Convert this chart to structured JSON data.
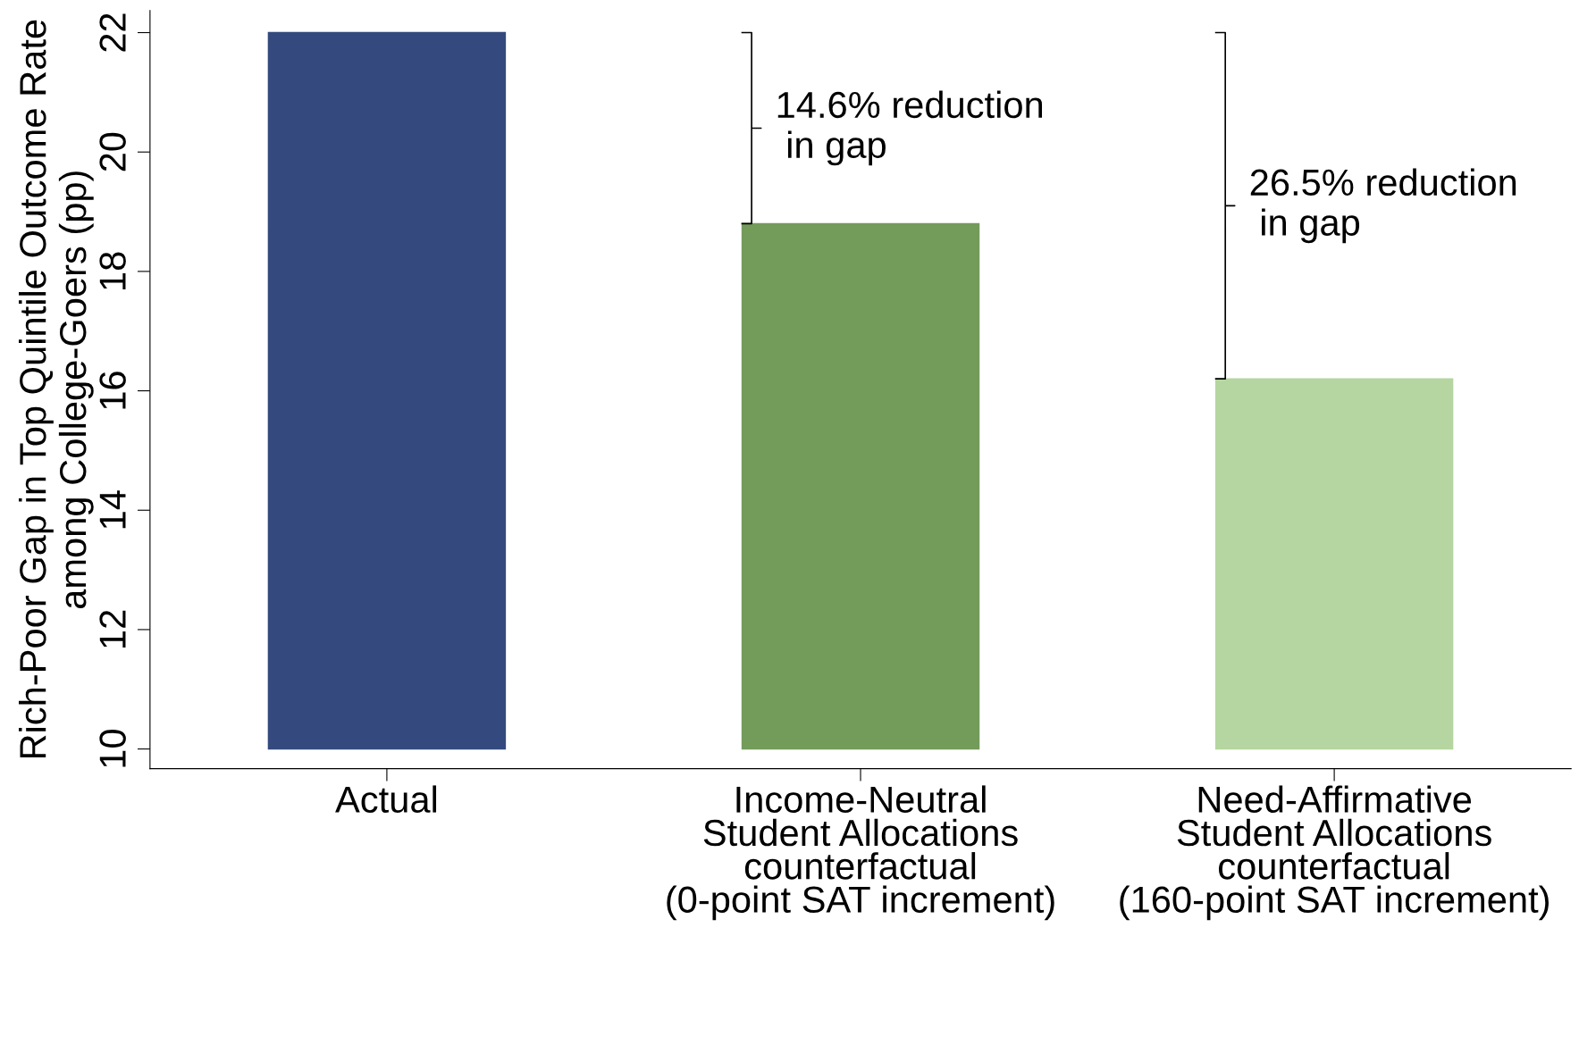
{
  "chart_data": {
    "type": "bar",
    "ylabel": "Rich-Poor Gap in Top Quintile Outcome Rate\namong College-Goers (pp)",
    "categories": [
      "Actual",
      "Income-Neutral\nStudent Allocations\ncounterfactual\n(0-point SAT increment)",
      "Need-Affirmative\nStudent Allocations\ncounterfactual\n(160-point SAT increment)"
    ],
    "base": [
      10,
      10,
      10
    ],
    "values": [
      12,
      8.8,
      6.2
    ],
    "colors": [
      "#344a7e",
      "#739b5a",
      "#b5d6a0"
    ],
    "ylim": [
      9.67,
      22.37
    ],
    "yticks": [
      10,
      12,
      14,
      16,
      18,
      20,
      22
    ],
    "grid": false,
    "annotations": [
      "14.6% reduction\n in gap",
      "26.5% reduction\n in gap"
    ]
  }
}
